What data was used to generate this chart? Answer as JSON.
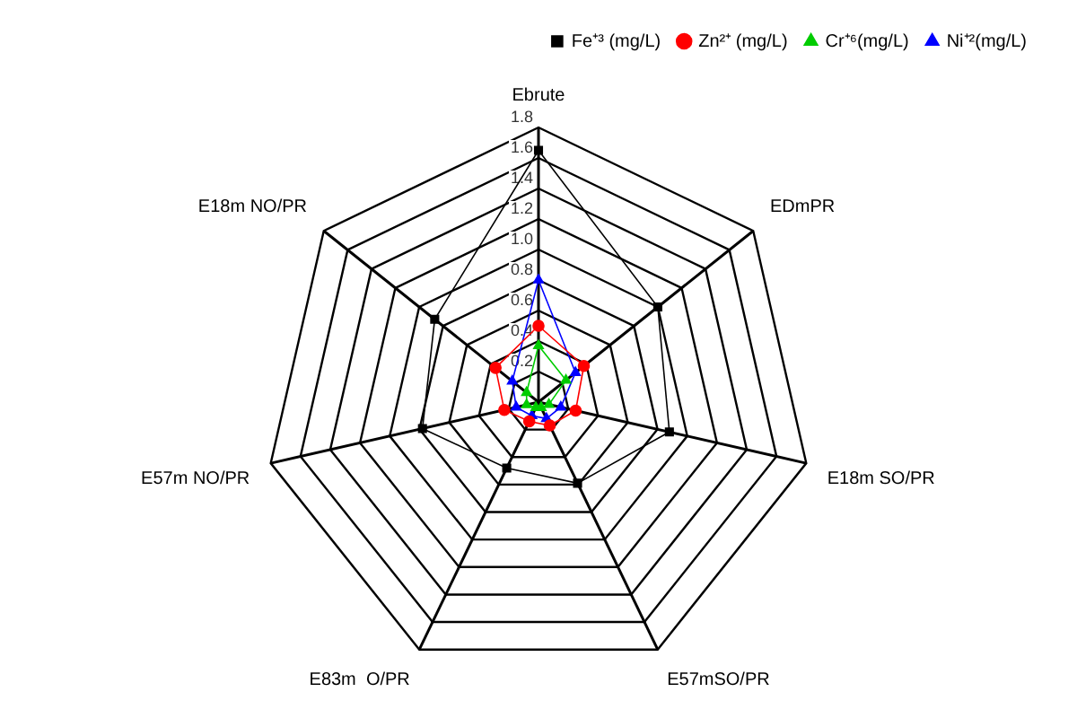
{
  "chart_data": {
    "type": "radar",
    "categories": [
      "Ebrute",
      "EDmPR",
      "E18m SO/PR",
      "E57mSO/PR",
      "E83m  O/PR",
      "E57m NO/PR",
      "E18m NO/PR"
    ],
    "series": [
      {
        "name": "Fe⁺³ (mg/L)",
        "color": "#000000",
        "marker": "square",
        "values": [
          1.65,
          1.0,
          0.88,
          0.59,
          0.48,
          0.78,
          0.87
        ]
      },
      {
        "name": "Zn²⁺ (mg/L)",
        "color": "#ff0000",
        "marker": "circle",
        "values": [
          0.5,
          0.38,
          0.25,
          0.17,
          0.14,
          0.23,
          0.36
        ]
      },
      {
        "name": "Cr⁺⁶(mg/L)",
        "color": "#00cc00",
        "marker": "triangle",
        "values": [
          0.37,
          0.23,
          0.07,
          0.04,
          0.04,
          0.08,
          0.1
        ]
      },
      {
        "name": "Ni⁺²(mg/L)",
        "color": "#0000ff",
        "marker": "triangle",
        "values": [
          0.8,
          0.31,
          0.15,
          0.12,
          0.1,
          0.15,
          0.22
        ]
      }
    ],
    "ylim": [
      0,
      1.8
    ],
    "yticks": [
      {
        "value": 0.2,
        "label": "0.2"
      },
      {
        "value": 0.4,
        "label": "0.4"
      },
      {
        "value": 0.6,
        "label": "0.6"
      },
      {
        "value": 0.8,
        "label": "0.8"
      },
      {
        "value": 1,
        "label": "1.0"
      },
      {
        "value": 1.2,
        "label": "1.2"
      },
      {
        "value": 1.4,
        "label": "1.4"
      },
      {
        "value": 1.6,
        "label": "1.6"
      },
      {
        "value": 1.8,
        "label": "1.8"
      }
    ],
    "grid": true,
    "legend": "top right",
    "line_style": "solid"
  }
}
